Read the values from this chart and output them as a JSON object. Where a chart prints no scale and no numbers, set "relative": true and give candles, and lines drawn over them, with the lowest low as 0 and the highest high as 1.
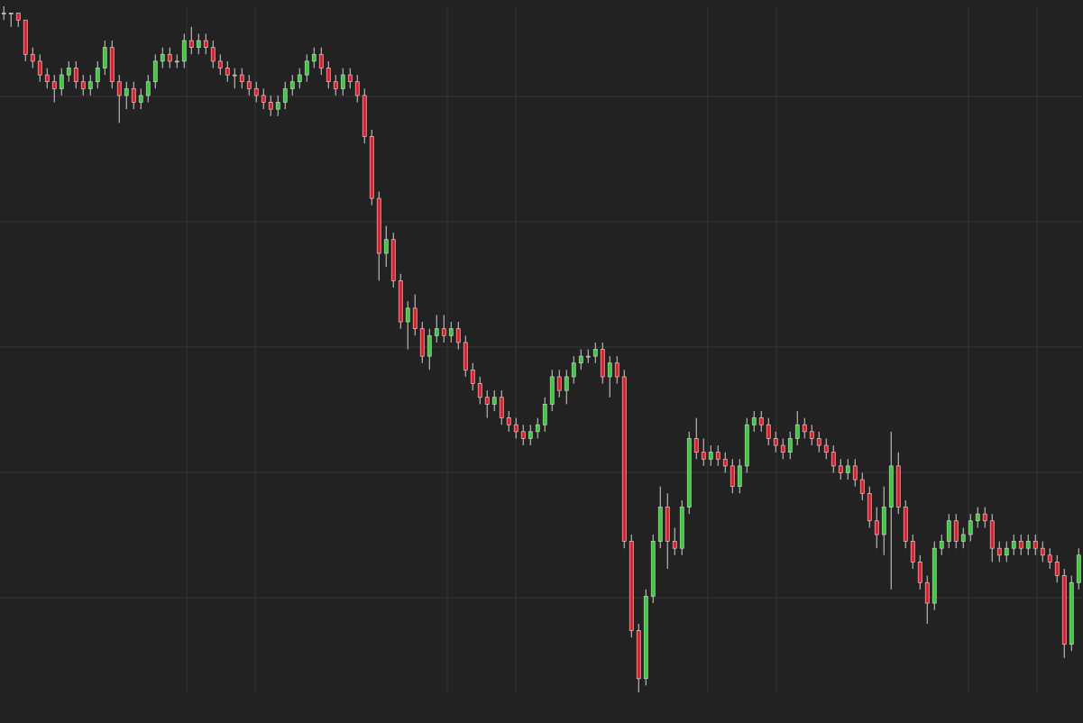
{
  "chart_data": {
    "type": "candlestick",
    "relative": true,
    "grid": true,
    "tick_labels": false,
    "categories": [
      null,
      null,
      null,
      null,
      null,
      null,
      null,
      null,
      null,
      null,
      null,
      null,
      null,
      null,
      null,
      null,
      null,
      null,
      null,
      null,
      null,
      null,
      null,
      null,
      null,
      null,
      null,
      null,
      null,
      null,
      null,
      null,
      null,
      null,
      null,
      null,
      null,
      null,
      null,
      null,
      null,
      null,
      null,
      null,
      null,
      null,
      null,
      null,
      null,
      null,
      null,
      null,
      null,
      null,
      null,
      null,
      null,
      null,
      null,
      null,
      null,
      null,
      null,
      null,
      null,
      null,
      null,
      null,
      null,
      null,
      null,
      null,
      null,
      null,
      null,
      null,
      null,
      null,
      null,
      null,
      null,
      null,
      null,
      null,
      null,
      null,
      null,
      null,
      null,
      null,
      null,
      null,
      null,
      null,
      null,
      null,
      null,
      null,
      null,
      null,
      null,
      null,
      null,
      null,
      null,
      null,
      null,
      null,
      null,
      null,
      null,
      null,
      null,
      null,
      null,
      null,
      null,
      null,
      null,
      null,
      null,
      null,
      null,
      null,
      null,
      null,
      null,
      null,
      null,
      null,
      null,
      null,
      null,
      null,
      null,
      null,
      null,
      null,
      null,
      null,
      null,
      null,
      null,
      null,
      null,
      null,
      null,
      null,
      null,
      null
    ],
    "ohlc": [
      [
        0.99,
        1.0,
        0.98,
        0.99
      ],
      [
        0.99,
        0.99,
        0.97,
        0.99
      ],
      [
        0.99,
        0.99,
        0.97,
        0.98
      ],
      [
        0.98,
        0.98,
        0.92,
        0.93
      ],
      [
        0.93,
        0.94,
        0.91,
        0.92
      ],
      [
        0.92,
        0.93,
        0.89,
        0.9
      ],
      [
        0.9,
        0.91,
        0.88,
        0.89
      ],
      [
        0.89,
        0.9,
        0.86,
        0.88
      ],
      [
        0.88,
        0.91,
        0.87,
        0.9
      ],
      [
        0.9,
        0.92,
        0.89,
        0.91
      ],
      [
        0.91,
        0.92,
        0.88,
        0.89
      ],
      [
        0.89,
        0.9,
        0.87,
        0.88
      ],
      [
        0.88,
        0.9,
        0.87,
        0.89
      ],
      [
        0.89,
        0.92,
        0.88,
        0.91
      ],
      [
        0.91,
        0.95,
        0.9,
        0.94
      ],
      [
        0.94,
        0.95,
        0.88,
        0.89
      ],
      [
        0.89,
        0.9,
        0.83,
        0.87
      ],
      [
        0.87,
        0.89,
        0.85,
        0.88
      ],
      [
        0.88,
        0.89,
        0.85,
        0.86
      ],
      [
        0.86,
        0.88,
        0.85,
        0.87
      ],
      [
        0.87,
        0.9,
        0.86,
        0.89
      ],
      [
        0.89,
        0.93,
        0.88,
        0.92
      ],
      [
        0.92,
        0.94,
        0.91,
        0.93
      ],
      [
        0.93,
        0.94,
        0.91,
        0.92
      ],
      [
        0.92,
        0.93,
        0.91,
        0.92
      ],
      [
        0.92,
        0.96,
        0.91,
        0.95
      ],
      [
        0.95,
        0.97,
        0.93,
        0.94
      ],
      [
        0.94,
        0.96,
        0.93,
        0.95
      ],
      [
        0.95,
        0.96,
        0.93,
        0.94
      ],
      [
        0.94,
        0.95,
        0.91,
        0.92
      ],
      [
        0.92,
        0.93,
        0.9,
        0.91
      ],
      [
        0.91,
        0.92,
        0.89,
        0.9
      ],
      [
        0.9,
        0.91,
        0.88,
        0.9
      ],
      [
        0.9,
        0.91,
        0.88,
        0.89
      ],
      [
        0.89,
        0.9,
        0.87,
        0.88
      ],
      [
        0.88,
        0.89,
        0.86,
        0.87
      ],
      [
        0.87,
        0.88,
        0.85,
        0.86
      ],
      [
        0.86,
        0.87,
        0.84,
        0.85
      ],
      [
        0.85,
        0.87,
        0.84,
        0.86
      ],
      [
        0.86,
        0.89,
        0.85,
        0.88
      ],
      [
        0.88,
        0.9,
        0.87,
        0.89
      ],
      [
        0.89,
        0.91,
        0.88,
        0.9
      ],
      [
        0.9,
        0.93,
        0.89,
        0.92
      ],
      [
        0.92,
        0.94,
        0.91,
        0.93
      ],
      [
        0.93,
        0.94,
        0.9,
        0.91
      ],
      [
        0.91,
        0.92,
        0.88,
        0.89
      ],
      [
        0.89,
        0.9,
        0.87,
        0.88
      ],
      [
        0.88,
        0.91,
        0.87,
        0.9
      ],
      [
        0.9,
        0.91,
        0.88,
        0.89
      ],
      [
        0.89,
        0.9,
        0.86,
        0.87
      ],
      [
        0.87,
        0.88,
        0.8,
        0.81
      ],
      [
        0.81,
        0.82,
        0.71,
        0.72
      ],
      [
        0.72,
        0.73,
        0.6,
        0.64
      ],
      [
        0.64,
        0.68,
        0.62,
        0.66
      ],
      [
        0.66,
        0.67,
        0.59,
        0.6
      ],
      [
        0.6,
        0.61,
        0.53,
        0.54
      ],
      [
        0.54,
        0.57,
        0.5,
        0.56
      ],
      [
        0.56,
        0.58,
        0.52,
        0.53
      ],
      [
        0.53,
        0.54,
        0.48,
        0.49
      ],
      [
        0.49,
        0.53,
        0.47,
        0.52
      ],
      [
        0.52,
        0.55,
        0.51,
        0.53
      ],
      [
        0.53,
        0.55,
        0.51,
        0.52
      ],
      [
        0.52,
        0.54,
        0.51,
        0.53
      ],
      [
        0.53,
        0.54,
        0.5,
        0.51
      ],
      [
        0.51,
        0.52,
        0.46,
        0.47
      ],
      [
        0.47,
        0.48,
        0.44,
        0.45
      ],
      [
        0.45,
        0.46,
        0.42,
        0.43
      ],
      [
        0.43,
        0.44,
        0.4,
        0.42
      ],
      [
        0.42,
        0.44,
        0.41,
        0.43
      ],
      [
        0.43,
        0.44,
        0.39,
        0.4
      ],
      [
        0.4,
        0.41,
        0.38,
        0.39
      ],
      [
        0.39,
        0.4,
        0.37,
        0.38
      ],
      [
        0.38,
        0.39,
        0.36,
        0.37
      ],
      [
        0.37,
        0.39,
        0.36,
        0.38
      ],
      [
        0.38,
        0.4,
        0.37,
        0.39
      ],
      [
        0.39,
        0.43,
        0.38,
        0.42
      ],
      [
        0.42,
        0.47,
        0.41,
        0.46
      ],
      [
        0.46,
        0.47,
        0.43,
        0.44
      ],
      [
        0.44,
        0.47,
        0.42,
        0.46
      ],
      [
        0.46,
        0.49,
        0.45,
        0.48
      ],
      [
        0.48,
        0.5,
        0.47,
        0.49
      ],
      [
        0.49,
        0.5,
        0.48,
        0.49
      ],
      [
        0.49,
        0.51,
        0.48,
        0.5
      ],
      [
        0.5,
        0.51,
        0.45,
        0.46
      ],
      [
        0.46,
        0.49,
        0.43,
        0.48
      ],
      [
        0.48,
        0.49,
        0.45,
        0.46
      ],
      [
        0.46,
        0.47,
        0.21,
        0.22
      ],
      [
        0.22,
        0.23,
        0.08,
        0.09
      ],
      [
        0.09,
        0.1,
        0.0,
        0.02
      ],
      [
        0.02,
        0.15,
        0.01,
        0.14
      ],
      [
        0.14,
        0.23,
        0.13,
        0.22
      ],
      [
        0.22,
        0.3,
        0.21,
        0.27
      ],
      [
        0.27,
        0.29,
        0.18,
        0.22
      ],
      [
        0.22,
        0.24,
        0.2,
        0.21
      ],
      [
        0.21,
        0.28,
        0.2,
        0.27
      ],
      [
        0.27,
        0.38,
        0.26,
        0.37
      ],
      [
        0.37,
        0.4,
        0.34,
        0.35
      ],
      [
        0.35,
        0.37,
        0.33,
        0.34
      ],
      [
        0.34,
        0.36,
        0.33,
        0.35
      ],
      [
        0.35,
        0.36,
        0.33,
        0.34
      ],
      [
        0.34,
        0.35,
        0.32,
        0.33
      ],
      [
        0.33,
        0.34,
        0.29,
        0.3
      ],
      [
        0.3,
        0.34,
        0.29,
        0.33
      ],
      [
        0.33,
        0.4,
        0.32,
        0.39
      ],
      [
        0.39,
        0.41,
        0.38,
        0.4
      ],
      [
        0.4,
        0.41,
        0.38,
        0.39
      ],
      [
        0.39,
        0.4,
        0.36,
        0.37
      ],
      [
        0.37,
        0.38,
        0.35,
        0.36
      ],
      [
        0.36,
        0.37,
        0.34,
        0.35
      ],
      [
        0.35,
        0.38,
        0.34,
        0.37
      ],
      [
        0.37,
        0.41,
        0.36,
        0.39
      ],
      [
        0.39,
        0.4,
        0.37,
        0.38
      ],
      [
        0.38,
        0.39,
        0.36,
        0.37
      ],
      [
        0.37,
        0.38,
        0.35,
        0.36
      ],
      [
        0.36,
        0.37,
        0.34,
        0.35
      ],
      [
        0.35,
        0.36,
        0.32,
        0.33
      ],
      [
        0.33,
        0.34,
        0.31,
        0.32
      ],
      [
        0.32,
        0.34,
        0.31,
        0.33
      ],
      [
        0.33,
        0.34,
        0.3,
        0.31
      ],
      [
        0.31,
        0.32,
        0.28,
        0.29
      ],
      [
        0.29,
        0.3,
        0.24,
        0.25
      ],
      [
        0.25,
        0.27,
        0.21,
        0.23
      ],
      [
        0.23,
        0.3,
        0.2,
        0.27
      ],
      [
        0.27,
        0.38,
        0.15,
        0.33
      ],
      [
        0.33,
        0.35,
        0.26,
        0.27
      ],
      [
        0.27,
        0.28,
        0.21,
        0.22
      ],
      [
        0.22,
        0.23,
        0.18,
        0.19
      ],
      [
        0.19,
        0.2,
        0.15,
        0.16
      ],
      [
        0.16,
        0.17,
        0.1,
        0.13
      ],
      [
        0.13,
        0.22,
        0.12,
        0.21
      ],
      [
        0.21,
        0.23,
        0.2,
        0.22
      ],
      [
        0.22,
        0.26,
        0.21,
        0.25
      ],
      [
        0.25,
        0.26,
        0.21,
        0.22
      ],
      [
        0.22,
        0.24,
        0.21,
        0.23
      ],
      [
        0.23,
        0.26,
        0.22,
        0.25
      ],
      [
        0.25,
        0.27,
        0.24,
        0.26
      ],
      [
        0.26,
        0.27,
        0.24,
        0.25
      ],
      [
        0.25,
        0.26,
        0.19,
        0.21
      ],
      [
        0.21,
        0.22,
        0.19,
        0.2
      ],
      [
        0.2,
        0.22,
        0.19,
        0.21
      ],
      [
        0.21,
        0.23,
        0.2,
        0.22
      ],
      [
        0.22,
        0.23,
        0.2,
        0.21
      ],
      [
        0.21,
        0.23,
        0.2,
        0.22
      ],
      [
        0.22,
        0.23,
        0.2,
        0.21
      ],
      [
        0.21,
        0.22,
        0.19,
        0.2
      ],
      [
        0.2,
        0.21,
        0.18,
        0.19
      ],
      [
        0.19,
        0.2,
        0.16,
        0.17
      ],
      [
        0.17,
        0.18,
        0.05,
        0.07
      ],
      [
        0.07,
        0.17,
        0.06,
        0.16
      ],
      [
        0.16,
        0.21,
        0.15,
        0.2
      ]
    ],
    "colors": [
      "#2fd22f",
      "#2fd22f",
      "#f2161f",
      "#f2161f",
      "#f2161f",
      "#f2161f",
      "#f2161f",
      "#f2161f",
      "#2fd22f",
      "#2fd22f",
      "#f2161f",
      "#f2161f",
      "#2fd22f",
      "#2fd22f",
      "#2fd22f",
      "#f2161f",
      "#f2161f",
      "#2fd22f",
      "#f2161f",
      "#2fd22f",
      "#2fd22f",
      "#2fd22f",
      "#2fd22f",
      "#f2161f",
      "#2fd22f",
      "#2fd22f",
      "#f2161f",
      "#2fd22f",
      "#f2161f",
      "#f2161f",
      "#f2161f",
      "#f2161f",
      "#2fd22f",
      "#f2161f",
      "#f2161f",
      "#f2161f",
      "#f2161f",
      "#f2161f",
      "#2fd22f",
      "#2fd22f",
      "#2fd22f",
      "#2fd22f",
      "#2fd22f",
      "#2fd22f",
      "#f2161f",
      "#f2161f",
      "#f2161f",
      "#2fd22f",
      "#f2161f",
      "#f2161f",
      "#f2161f",
      "#f2161f",
      "#f2161f",
      "#2fd22f",
      "#f2161f",
      "#f2161f",
      "#2fd22f",
      "#f2161f",
      "#f2161f",
      "#2fd22f",
      "#2fd22f",
      "#f2161f",
      "#2fd22f",
      "#f2161f",
      "#f2161f",
      "#f2161f",
      "#f2161f",
      "#f2161f",
      "#2fd22f",
      "#f2161f",
      "#f2161f",
      "#f2161f",
      "#f2161f",
      "#2fd22f",
      "#2fd22f",
      "#2fd22f",
      "#2fd22f",
      "#f2161f",
      "#2fd22f",
      "#2fd22f",
      "#2fd22f",
      "#2fd22f",
      "#2fd22f",
      "#f2161f",
      "#2fd22f",
      "#f2161f",
      "#f2161f",
      "#f2161f",
      "#f2161f",
      "#2fd22f",
      "#2fd22f",
      "#2fd22f",
      "#f2161f",
      "#f2161f",
      "#2fd22f",
      "#2fd22f",
      "#f2161f",
      "#f2161f",
      "#2fd22f",
      "#f2161f",
      "#f2161f",
      "#f2161f",
      "#2fd22f",
      "#2fd22f",
      "#2fd22f",
      "#f2161f",
      "#f2161f",
      "#f2161f",
      "#f2161f",
      "#2fd22f",
      "#2fd22f",
      "#f2161f",
      "#f2161f",
      "#f2161f",
      "#f2161f",
      "#f2161f",
      "#f2161f",
      "#2fd22f",
      "#f2161f",
      "#f2161f",
      "#f2161f",
      "#f2161f",
      "#2fd22f",
      "#2fd22f",
      "#f2161f",
      "#f2161f",
      "#f2161f",
      "#f2161f",
      "#f2161f",
      "#2fd22f",
      "#2fd22f",
      "#2fd22f",
      "#f2161f",
      "#2fd22f",
      "#2fd22f",
      "#2fd22f",
      "#f2161f",
      "#f2161f",
      "#f2161f",
      "#2fd22f",
      "#2fd22f",
      "#f2161f",
      "#2fd22f",
      "#f2161f",
      "#f2161f",
      "#f2161f",
      "#f2161f",
      "#f2161f",
      "#2fd22f",
      "#2fd22f"
    ]
  }
}
